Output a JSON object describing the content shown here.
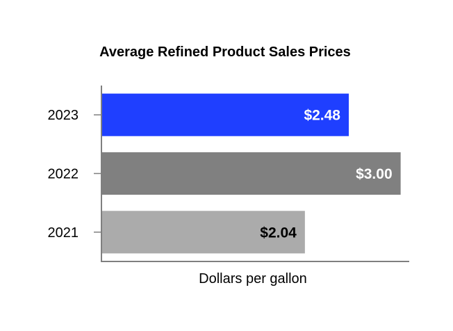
{
  "chart_data": {
    "type": "bar",
    "orientation": "horizontal",
    "title": "Average Refined Product Sales Prices",
    "xlabel": "Dollars per gallon",
    "ylabel": "",
    "categories": [
      "2023",
      "2022",
      "2021"
    ],
    "values": [
      2.48,
      3.0,
      2.04
    ],
    "value_labels": [
      "$2.48",
      "$3.00",
      "$2.04"
    ],
    "bar_colors": [
      "#1f3fff",
      "#808080",
      "#ababab"
    ],
    "label_colors": [
      "#ffffff",
      "#ffffff",
      "#000000"
    ],
    "xlim": [
      0,
      3.1
    ],
    "grid": false,
    "legend": "none"
  }
}
